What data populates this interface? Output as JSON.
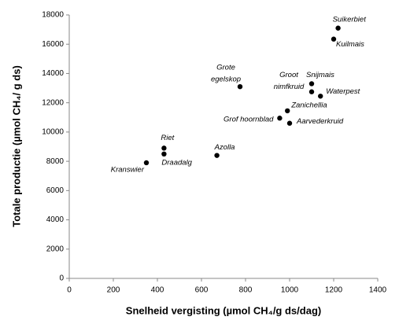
{
  "chart_data": {
    "type": "scatter",
    "x_label": "Snelheid vergisting (µmol CH₄/g ds/dag)",
    "y_label": "Totale productie (µmol CH₄/ g ds)",
    "labels": [
      [
        "Suikerbiet"
      ],
      [
        "Kuilmais"
      ],
      [
        "Grote",
        "egelskop"
      ],
      [
        "Snijmais"
      ],
      [
        "Groot",
        "nimfkruid"
      ],
      [
        "Waterpest"
      ],
      [
        "Zanichellia"
      ],
      [
        "Grof hoornblad"
      ],
      [
        "Aarvederkruid"
      ],
      [
        "Riet"
      ],
      [
        "Draadalg"
      ],
      [
        "Azolla"
      ],
      [
        "Kranswier"
      ]
    ],
    "x": [
      1220,
      1200,
      775,
      1100,
      1100,
      1140,
      990,
      955,
      1000,
      430,
      430,
      670,
      350
    ],
    "y": [
      17100,
      16350,
      13100,
      13300,
      12750,
      12450,
      11450,
      10950,
      10600,
      8900,
      8500,
      8400,
      7900
    ],
    "color": "#000000",
    "xlim": [
      0,
      1400
    ],
    "xticks": [
      0,
      200,
      400,
      600,
      800,
      1000,
      1200,
      1400
    ],
    "ylim": [
      0,
      18000
    ],
    "yticks": [
      0,
      2000,
      4000,
      6000,
      8000,
      10000,
      12000,
      14000,
      16000,
      18000
    ],
    "grid": false
  }
}
